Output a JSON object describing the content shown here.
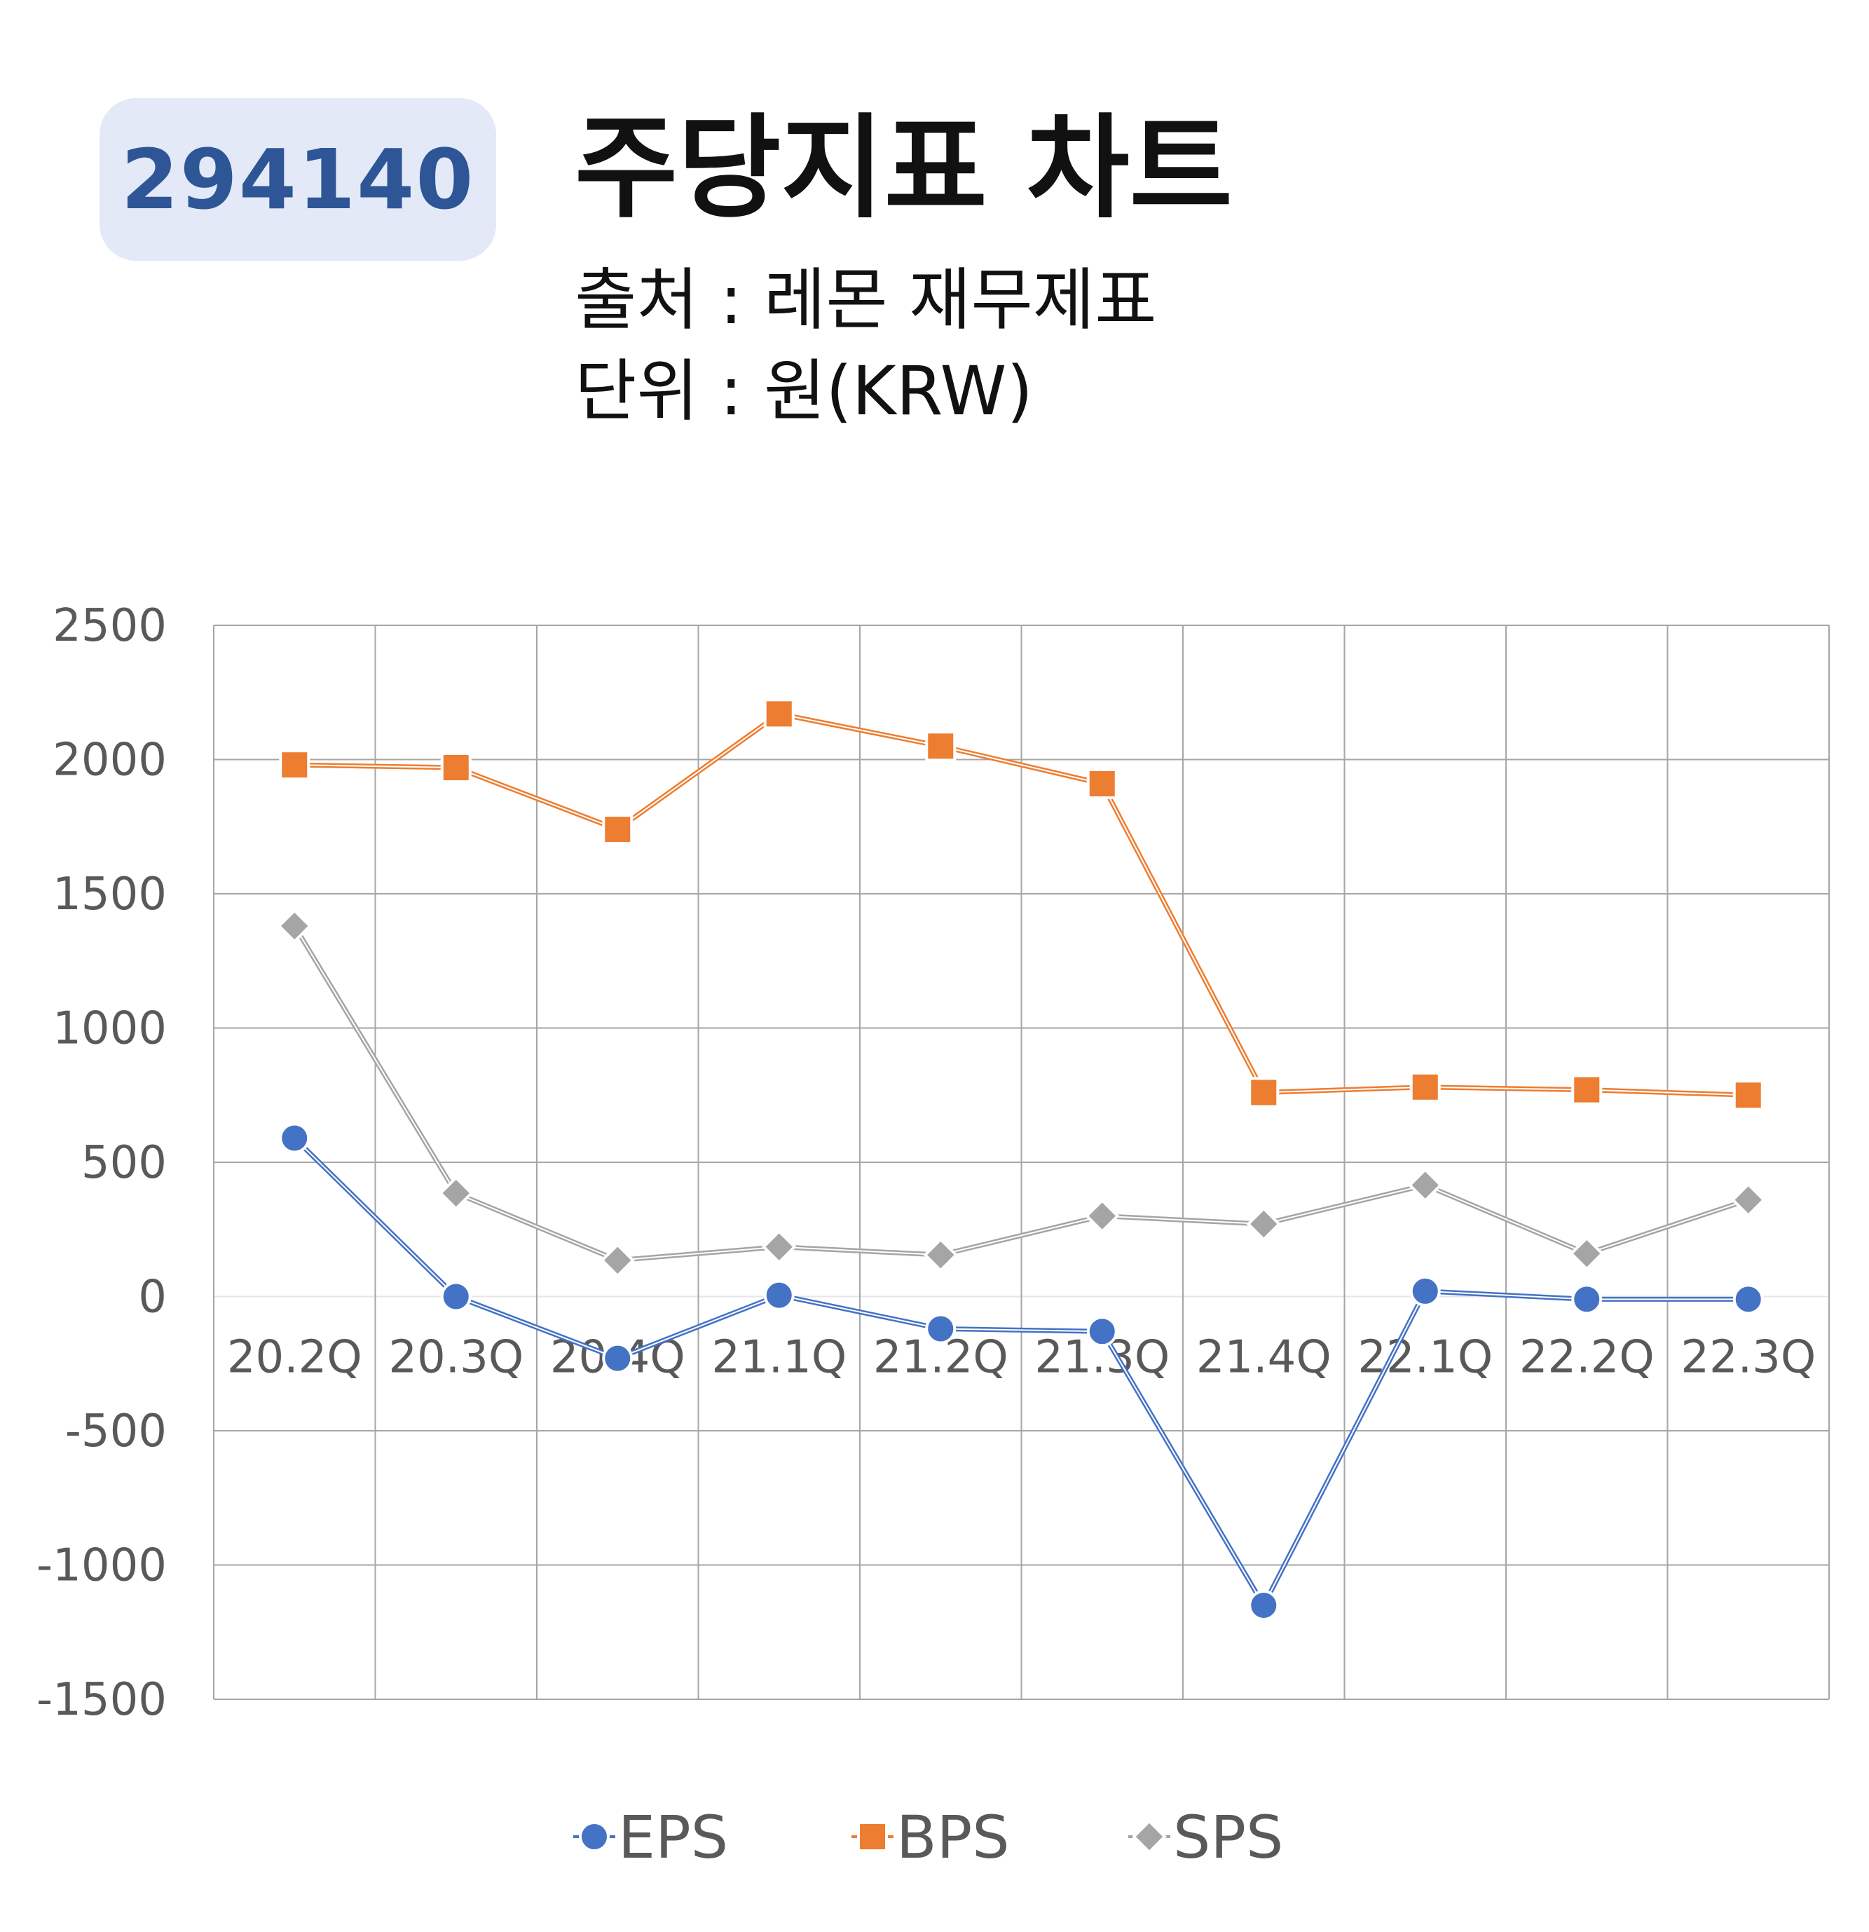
{
  "header": {
    "ticker": "294140",
    "title": "주당지표 차트",
    "source": "출처 : 레몬 재무제표",
    "unit": "단위 : 원(KRW)"
  },
  "chart_data": {
    "type": "line",
    "title": "",
    "xlabel": "",
    "ylabel": "",
    "categories": [
      "20.2Q",
      "20.3Q",
      "20.4Q",
      "21.1Q",
      "21.2Q",
      "21.3Q",
      "21.4Q",
      "22.1Q",
      "22.2Q",
      "22.3Q"
    ],
    "ylim": [
      -1500,
      2500
    ],
    "yticks": [
      2500,
      2000,
      1500,
      1000,
      500,
      0,
      -500,
      -1000,
      -1500
    ],
    "grid": true,
    "legend_position": "bottom",
    "series": [
      {
        "name": "EPS",
        "marker": "circle",
        "color": "#4472c4",
        "values": [
          590,
          0,
          -230,
          5,
          -120,
          -130,
          -1150,
          20,
          -10,
          -10
        ]
      },
      {
        "name": "BPS",
        "marker": "square",
        "color": "#ed7d31",
        "values": [
          1980,
          1970,
          1740,
          2170,
          2050,
          1910,
          760,
          780,
          770,
          750
        ]
      },
      {
        "name": "SPS",
        "marker": "diamond",
        "color": "#a5a5a5",
        "values": [
          1380,
          385,
          135,
          185,
          155,
          300,
          270,
          415,
          160,
          360
        ]
      }
    ]
  }
}
